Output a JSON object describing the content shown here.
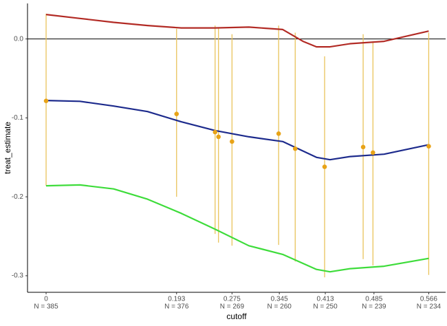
{
  "chart_data": {
    "type": "line",
    "x_label": "cutoff",
    "y_label": "treat_estimate",
    "xlim": [
      -0.0275,
      0.591
    ],
    "ylim": [
      -0.321,
      0.045
    ],
    "xticks": [
      0,
      0.193,
      0.275,
      0.345,
      0.413,
      0.485,
      0.566
    ],
    "xtick_counts": [
      "N = 385",
      "N = 376",
      "N = 269",
      "N = 260",
      "N = 250",
      "N = 239",
      "N = 234"
    ],
    "yticks": [
      {
        "value": 0,
        "label": "0.0"
      },
      -0.1,
      -0.2,
      -0.3
    ],
    "hline": 0,
    "series": [
      {
        "color": "#b22a24",
        "x": [
          0,
          0.05,
          0.1,
          0.15,
          0.2,
          0.25,
          0.3,
          0.35,
          0.38,
          0.4,
          0.42,
          0.45,
          0.5,
          0.566
        ],
        "values": [
          0.031,
          0.026,
          0.021,
          0.017,
          0.014,
          0.014,
          0.015,
          0.012,
          -0.003,
          -0.01,
          -0.01,
          -0.006,
          -0.003,
          0.01
        ]
      },
      {
        "color": "#1c2a8c",
        "x": [
          0,
          0.05,
          0.1,
          0.15,
          0.2,
          0.25,
          0.3,
          0.35,
          0.4,
          0.42,
          0.45,
          0.5,
          0.566
        ],
        "values": [
          -0.078,
          -0.079,
          -0.085,
          -0.092,
          -0.105,
          -0.116,
          -0.124,
          -0.13,
          -0.15,
          -0.153,
          -0.149,
          -0.146,
          -0.134
        ]
      },
      {
        "color": "#3ddc3a",
        "x": [
          0,
          0.05,
          0.1,
          0.15,
          0.2,
          0.25,
          0.3,
          0.35,
          0.4,
          0.42,
          0.45,
          0.5,
          0.566
        ],
        "values": [
          -0.186,
          -0.185,
          -0.19,
          -0.203,
          -0.221,
          -0.241,
          -0.262,
          -0.273,
          -0.292,
          -0.295,
          -0.291,
          -0.288,
          -0.278
        ]
      }
    ],
    "points": {
      "color": "#e8a317",
      "bar_color": "#e9c35a",
      "x": [
        0,
        0.193,
        0.25,
        0.255,
        0.275,
        0.344,
        0.3685,
        0.412,
        0.469,
        0.4835,
        0.566
      ],
      "values": [
        -0.0785,
        -0.095,
        -0.118,
        -0.124,
        -0.13,
        -0.12,
        -0.139,
        -0.162,
        -0.137,
        -0.144,
        -0.136
      ],
      "lower": [
        -0.186,
        -0.2,
        -0.247,
        -0.258,
        -0.262,
        -0.261,
        -0.282,
        -0.302,
        -0.279,
        -0.287,
        -0.299
      ],
      "upper": [
        0.032,
        0.013,
        0.017,
        0.015,
        0.006,
        0.017,
        0.008,
        -0.022,
        0.006,
        -0.003,
        0.008
      ]
    }
  }
}
